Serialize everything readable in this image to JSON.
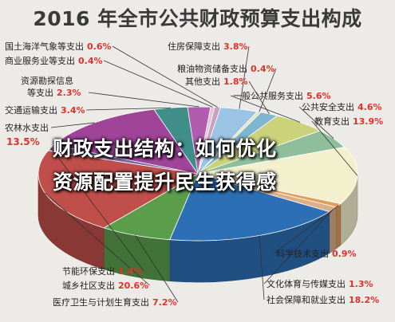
{
  "title": "2016 年全市公共财政预算支出构成",
  "overlay": {
    "line1": "财政支出结构：如何优化",
    "line2": "资源配置提升民生获得感"
  },
  "colors": {
    "label_text": "#222222",
    "value_text": "#e0312a",
    "leader": "#333333"
  },
  "chart_data": {
    "type": "pie",
    "title": "2016 年全市公共财政预算支出构成",
    "unit": "%",
    "slices": [
      {
        "name": "一般公共服务支出",
        "value": 5.6,
        "label": "5.6%",
        "color": "#cbd27a"
      },
      {
        "name": "公共安全支出",
        "value": 4.6,
        "label": "4.6%",
        "color": "#8fbf9a"
      },
      {
        "name": "教育支出",
        "value": 13.9,
        "label": "13.9%",
        "color": "#f3f0ce"
      },
      {
        "name": "科学技术支出",
        "value": 0.9,
        "label": "0.9%",
        "color": "#e39d5a"
      },
      {
        "name": "文化体育与传媒支出",
        "value": 1.3,
        "label": "1.3%",
        "color": "#d9b08a"
      },
      {
        "name": "社会保障和就业支出",
        "value": 18.2,
        "label": "18.2%",
        "color": "#2d6fb4"
      },
      {
        "name": "医疗卫生与计划生育支出",
        "value": 7.2,
        "label": "7.2%",
        "color": "#5a9e4c"
      },
      {
        "name": "城乡社区支出",
        "value": 20.6,
        "label": "20.6%",
        "color": "#c04e4a"
      },
      {
        "name": "节能环保支出",
        "value": 1.4,
        "label": "1.4%",
        "color": "#7a6aa8"
      },
      {
        "name": "农林水支出",
        "value": 13.5,
        "label": "13.5%",
        "color": "#a0449a"
      },
      {
        "name": "交通运输支出",
        "value": 3.4,
        "label": "3.4%",
        "color": "#3f8e8a"
      },
      {
        "name": "资源勘探信息等支出",
        "value": 2.3,
        "label": "2.3%",
        "color": "#b05db0"
      },
      {
        "name": "商业服务业等支出",
        "value": 0.4,
        "label": "0.4%",
        "color": "#e3c3d8"
      },
      {
        "name": "国土海洋气象等支出",
        "value": 0.6,
        "label": "0.6%",
        "color": "#c9a0c0"
      },
      {
        "name": "住房保障支出",
        "value": 3.8,
        "label": "3.8%",
        "color": "#9bc4e4"
      },
      {
        "name": "粮油物资储备支出",
        "value": 0.4,
        "label": "0.4%",
        "color": "#e5e2bd"
      },
      {
        "name": "其他支出",
        "value": 1.8,
        "label": "1.8%",
        "color": "#7fb6cf"
      }
    ]
  }
}
